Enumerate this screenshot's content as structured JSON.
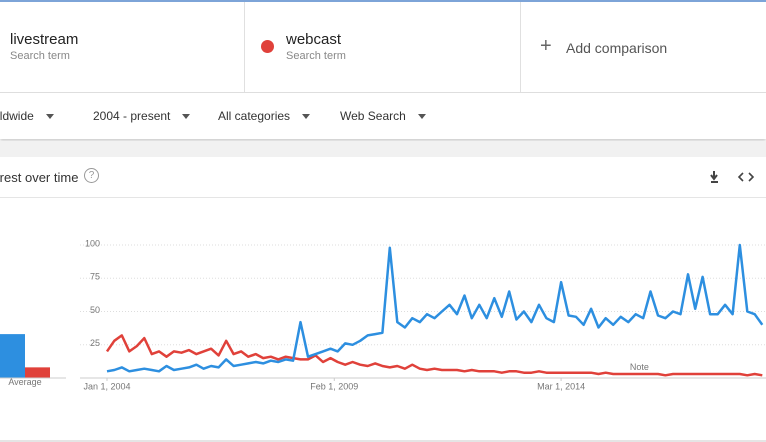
{
  "compare": {
    "term_labels": [
      "Search term",
      "Search term"
    ],
    "add": "Add comparison"
  },
  "filters": [
    "Worldwide",
    "2004 - present",
    "All categories",
    "Web Search"
  ],
  "chart_data": {
    "type": "line",
    "title": "Interest over time",
    "average_label": "Average",
    "x": [
      "2004-01-01",
      "2004-03-01",
      "2004-05-01",
      "2004-07-01",
      "2004-09-01",
      "2004-11-01",
      "2005-01-01",
      "2005-03-01",
      "2005-05-01",
      "2005-07-01",
      "2005-09-01",
      "2005-11-01",
      "2006-01-01",
      "2006-03-01",
      "2006-05-01",
      "2006-07-01",
      "2006-09-01",
      "2006-11-01",
      "2007-01-01",
      "2007-03-01",
      "2007-05-01",
      "2007-07-01",
      "2007-09-01",
      "2007-11-01",
      "2008-01-01",
      "2008-03-01",
      "2008-05-01",
      "2008-07-01",
      "2008-09-01",
      "2008-11-01",
      "2009-01-01",
      "2009-03-01",
      "2009-05-01",
      "2009-07-01",
      "2009-09-01",
      "2009-11-01",
      "2010-01-01",
      "2010-03-01",
      "2010-05-01",
      "2010-07-01",
      "2010-09-01",
      "2010-11-01",
      "2011-01-01",
      "2011-03-01",
      "2011-05-01",
      "2011-07-01",
      "2011-09-01",
      "2011-11-01",
      "2012-01-01",
      "2012-03-01",
      "2012-05-01",
      "2012-07-01",
      "2012-09-01",
      "2012-11-01",
      "2013-01-01",
      "2013-03-01",
      "2013-05-01",
      "2013-07-01",
      "2013-09-01",
      "2013-11-01",
      "2014-01-01",
      "2014-03-01",
      "2014-05-01",
      "2014-07-01",
      "2014-09-01",
      "2014-11-01",
      "2015-01-01",
      "2015-03-01",
      "2015-05-01",
      "2015-07-01",
      "2015-09-01",
      "2015-11-01",
      "2016-01-01",
      "2016-03-01",
      "2016-05-01",
      "2016-07-01",
      "2016-09-01",
      "2016-11-01",
      "2017-01-01",
      "2017-03-01",
      "2017-05-01",
      "2017-07-01",
      "2017-09-01",
      "2017-11-01",
      "2018-01-01",
      "2018-03-01",
      "2018-05-01",
      "2018-07-01",
      "2018-09-01"
    ],
    "series": [
      {
        "name": "livestream",
        "color": "#2d8fe0",
        "average": 33,
        "values": [
          5,
          6,
          8,
          5,
          6,
          7,
          6,
          5,
          9,
          6,
          7,
          8,
          10,
          7,
          9,
          8,
          14,
          9,
          10,
          11,
          12,
          11,
          13,
          12,
          14,
          13,
          42,
          16,
          18,
          20,
          22,
          20,
          26,
          25,
          28,
          32,
          33,
          34,
          98,
          42,
          38,
          45,
          42,
          48,
          45,
          50,
          55,
          48,
          62,
          45,
          55,
          45,
          60,
          46,
          65,
          44,
          50,
          42,
          55,
          45,
          42,
          72,
          47,
          46,
          40,
          52,
          38,
          45,
          40,
          46,
          42,
          48,
          45,
          65,
          47,
          45,
          50,
          48,
          78,
          52,
          76,
          48,
          48,
          55,
          48,
          100,
          50,
          48,
          40
        ]
      },
      {
        "name": "webcast",
        "color": "#e0413a",
        "average": 8,
        "values": [
          20,
          28,
          32,
          20,
          24,
          30,
          18,
          20,
          16,
          20,
          19,
          21,
          18,
          20,
          22,
          17,
          28,
          18,
          20,
          16,
          18,
          15,
          16,
          14,
          16,
          15,
          14,
          14,
          17,
          12,
          15,
          12,
          10,
          12,
          10,
          9,
          11,
          9,
          8,
          9,
          7,
          10,
          7,
          6,
          7,
          6,
          6,
          6,
          5,
          6,
          5,
          5,
          5,
          4,
          5,
          5,
          4,
          4,
          5,
          4,
          4,
          4,
          4,
          4,
          4,
          4,
          3,
          4,
          3,
          3,
          3,
          3,
          3,
          3,
          3,
          2,
          3,
          3,
          3,
          3,
          3,
          3,
          3,
          3,
          3,
          3,
          2,
          3,
          2
        ]
      }
    ],
    "xlim": [
      "2004-01-01",
      "2018-10-01"
    ],
    "xticks": [
      {
        "value": "2004-01-01",
        "label": "Jan 1, 2004"
      },
      {
        "value": "2009-02-01",
        "label": "Feb 1, 2009"
      },
      {
        "value": "2014-03-01",
        "label": "Mar 1, 2014"
      }
    ],
    "ylim": [
      0,
      100
    ],
    "yticks": [
      25,
      50,
      75,
      100
    ],
    "grid": true,
    "annotations": [
      {
        "text": "Note",
        "x": "2015-12-01"
      }
    ]
  }
}
